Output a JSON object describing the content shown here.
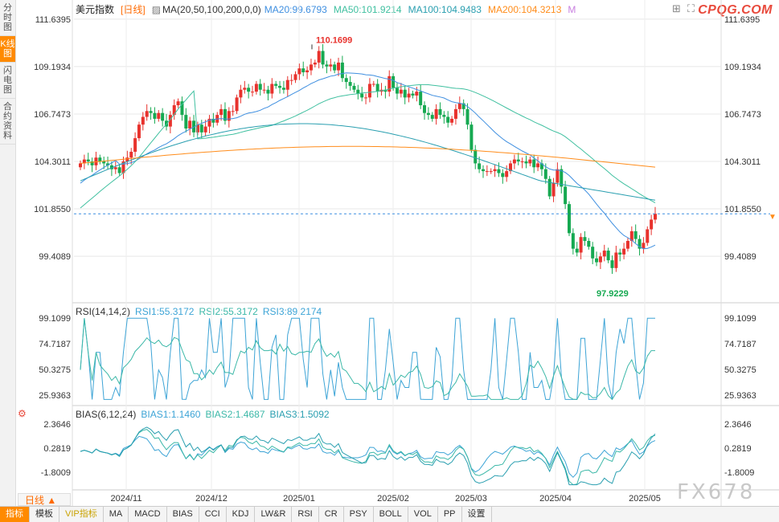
{
  "sidebar": [
    {
      "label": "分时图",
      "active": false
    },
    {
      "label": "K线图",
      "active": true
    },
    {
      "label": "闪电图",
      "active": false
    },
    {
      "label": "合约资料",
      "active": false
    }
  ],
  "header": {
    "name": "美元指数",
    "period": "[日线]",
    "ma_label": "MA(20,50,100,200,0,0)",
    "ma20": "MA20:99.6793",
    "ma50": "MA50:101.9214",
    "ma100": "MA100:104.9483",
    "ma200": "MA200:104.3213",
    "extra": "M",
    "logo": "CPQG.COM"
  },
  "rsi_legend": {
    "name": "RSI(14,14,2)",
    "r1": "RSI1:55.3172",
    "r2": "RSI2:55.3172",
    "r3": "RSI3:89.2174"
  },
  "bias_legend": {
    "name": "BIAS(6,12,24)",
    "b1": "BIAS1:1.1460",
    "b2": "BIAS2:1.4687",
    "b3": "BIAS3:1.5092"
  },
  "period_select": "日线 ▲",
  "watermark": "FX678",
  "bottom_tabs": [
    "指标",
    "模板",
    "VIP指标",
    "MA",
    "MACD",
    "BIAS",
    "CCI",
    "KDJ",
    "LW&R",
    "RSI",
    "CR",
    "PSY",
    "BOLL",
    "VOL",
    "PP",
    "设置"
  ],
  "colors": {
    "up": "#e8322d",
    "down": "#16a951",
    "ma20": "#3f8fe0",
    "ma50": "#40c0a0",
    "ma100": "#2a9fb0",
    "ma200": "#ff8c1a",
    "rsi1": "#3da4d6",
    "rsi2": "#3cb8a8",
    "grid": "#e8e8e8",
    "last": "#3f8fe0"
  },
  "chart_data": [
    {
      "type": "candlestick",
      "title": "美元指数 [日线]",
      "y_ticks": [
        111.6395,
        109.1934,
        106.7473,
        104.3011,
        101.855,
        99.4089
      ],
      "x_labels": [
        "2024/11",
        "2024/12",
        "2025/01",
        "2025/02",
        "2025/03",
        "2025/04",
        "2025/05"
      ],
      "high_annotation": {
        "label": "110.1699",
        "value": 110.1699
      },
      "low_annotation": {
        "label": "97.9229",
        "value": 97.9229
      },
      "last_price": 101.6,
      "closes": [
        104.2,
        104.4,
        104.3,
        104.1,
        104.5,
        104.3,
        104.2,
        104.1,
        103.9,
        104.0,
        103.7,
        104.3,
        104.5,
        104.8,
        105.5,
        106.2,
        106.6,
        106.9,
        106.8,
        106.5,
        106.8,
        106.4,
        106.1,
        106.7,
        107.2,
        107.4,
        106.7,
        106.0,
        106.4,
        105.8,
        106.2,
        105.8,
        106.1,
        106.5,
        106.3,
        106.7,
        107.0,
        106.4,
        106.9,
        106.9,
        107.6,
        108.0,
        108.1,
        107.9,
        107.9,
        108.3,
        108.0,
        108.0,
        107.8,
        108.3,
        108.2,
        108.1,
        108.0,
        108.5,
        108.5,
        108.8,
        109.1,
        108.9,
        109.0,
        109.3,
        109.4,
        110.0,
        109.3,
        109.2,
        109.3,
        109.0,
        109.4,
        108.6,
        108.4,
        108.2,
        108.0,
        107.8,
        107.6,
        107.6,
        108.3,
        108.3,
        107.9,
        108.0,
        107.9,
        108.7,
        108.1,
        107.8,
        108.0,
        107.6,
        107.8,
        107.7,
        107.9,
        107.2,
        106.8,
        106.7,
        106.5,
        107.0,
        106.7,
        106.6,
        106.3,
        106.5,
        107.0,
        107.3,
        107.0,
        106.2,
        104.9,
        104.2,
        103.9,
        103.8,
        103.8,
        103.8,
        103.9,
        103.7,
        103.5,
        103.8,
        104.2,
        104.4,
        104.3,
        104.3,
        104.2,
        104.4,
        104.0,
        104.2,
        103.9,
        103.4,
        102.5,
        103.2,
        103.9,
        103.0,
        102.1,
        100.6,
        99.8,
        99.6,
        100.4,
        100.2,
        99.9,
        99.3,
        99.1,
        99.4,
        99.7,
        99.2,
        98.8,
        99.6,
        99.5,
        99.8,
        100.2,
        100.7,
        100.3,
        99.8,
        100.1,
        100.8,
        101.3,
        101.6
      ],
      "rsi": {
        "range": [
          25.9363,
          99.1099
        ],
        "rsi1_last": 55.3172,
        "rsi2_last": 55.3172,
        "rsi3_last": 89.2174,
        "y_ticks": [
          99.1099,
          74.7187,
          50.3275,
          25.9363
        ]
      },
      "bias": {
        "y_ticks": [
          2.3646,
          0.2819,
          -1.8009
        ],
        "bias1_last": 1.146,
        "bias2_last": 1.4687,
        "bias3_last": 1.5092
      }
    }
  ]
}
